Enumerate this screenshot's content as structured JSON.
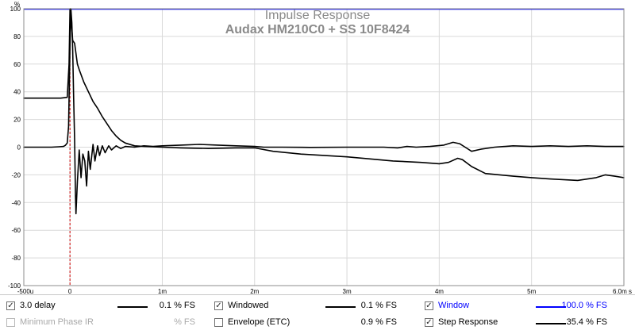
{
  "chart_data": {
    "type": "line",
    "title": "Impulse Response",
    "subtitle": "Audax HM210C0 + SS 10F8424",
    "y_unit": "%",
    "ylim": [
      -100,
      100
    ],
    "xlim": [
      -0.5,
      6.0
    ],
    "x_ticks": [
      {
        "v": -0.5,
        "label": "-500u"
      },
      {
        "v": 0,
        "label": "0"
      },
      {
        "v": 1,
        "label": "1m"
      },
      {
        "v": 2,
        "label": "2m"
      },
      {
        "v": 3,
        "label": "3m"
      },
      {
        "v": 4,
        "label": "4m"
      },
      {
        "v": 5,
        "label": "5m"
      },
      {
        "v": 6,
        "label": "6.0m s"
      }
    ],
    "y_ticks": [
      {
        "v": 100,
        "label": "100"
      },
      {
        "v": 80,
        "label": "80"
      },
      {
        "v": 60,
        "label": "60"
      },
      {
        "v": 40,
        "label": "40"
      },
      {
        "v": 20,
        "label": "20"
      },
      {
        "v": 0,
        "label": "0"
      },
      {
        "v": -20,
        "label": "-20"
      },
      {
        "v": -40,
        "label": "-40"
      },
      {
        "v": -60,
        "label": "-60"
      },
      {
        "v": -80,
        "label": "-80"
      },
      {
        "v": -100,
        "label": "-100"
      }
    ],
    "grid": true,
    "marker": {
      "x": 0,
      "color": "#d00000"
    },
    "window_level": 100,
    "series": [
      {
        "name": "3.0 delay",
        "color": "#000000",
        "points": [
          [
            -0.5,
            0
          ],
          [
            -0.4,
            0
          ],
          [
            -0.3,
            0
          ],
          [
            -0.2,
            0
          ],
          [
            -0.12,
            0.3
          ],
          [
            -0.07,
            0.5
          ],
          [
            -0.05,
            1.3
          ],
          [
            -0.03,
            3
          ],
          [
            -0.015,
            15
          ],
          [
            0,
            75
          ],
          [
            0.01,
            100
          ],
          [
            0.02,
            90
          ],
          [
            0.03,
            70
          ],
          [
            0.04,
            35
          ],
          [
            0.05,
            5
          ],
          [
            0.06,
            -35
          ],
          [
            0.065,
            -48
          ],
          [
            0.08,
            -25
          ],
          [
            0.1,
            -2
          ],
          [
            0.12,
            -22
          ],
          [
            0.14,
            -5
          ],
          [
            0.16,
            -10
          ],
          [
            0.18,
            -28
          ],
          [
            0.2,
            -3
          ],
          [
            0.22,
            -16
          ],
          [
            0.25,
            2
          ],
          [
            0.27,
            -10
          ],
          [
            0.3,
            1
          ],
          [
            0.32,
            -6
          ],
          [
            0.35,
            1
          ],
          [
            0.38,
            -4
          ],
          [
            0.42,
            1
          ],
          [
            0.45,
            -2
          ],
          [
            0.5,
            1
          ],
          [
            0.55,
            -1
          ],
          [
            0.6,
            0.5
          ],
          [
            0.7,
            0
          ],
          [
            0.8,
            1
          ],
          [
            0.9,
            0.5
          ],
          [
            1.0,
            1
          ],
          [
            1.2,
            1.5
          ],
          [
            1.4,
            2
          ],
          [
            1.6,
            1.5
          ],
          [
            1.8,
            1
          ],
          [
            2.0,
            0.5
          ],
          [
            2.1,
            0
          ],
          [
            2.3,
            0
          ],
          [
            2.6,
            -0.2
          ],
          [
            3.0,
            0
          ],
          [
            3.4,
            0
          ],
          [
            3.55,
            -0.5
          ],
          [
            3.65,
            0.5
          ],
          [
            3.75,
            0
          ],
          [
            3.9,
            0.5
          ],
          [
            4.05,
            1.5
          ],
          [
            4.15,
            3.5
          ],
          [
            4.22,
            2.5
          ],
          [
            4.28,
            0
          ],
          [
            4.35,
            -3
          ],
          [
            4.45,
            -1.5
          ],
          [
            4.6,
            0
          ],
          [
            4.8,
            1
          ],
          [
            5.0,
            0.5
          ],
          [
            5.2,
            1
          ],
          [
            5.4,
            0.5
          ],
          [
            5.6,
            1
          ],
          [
            5.8,
            0.5
          ],
          [
            6.0,
            0.5
          ]
        ]
      },
      {
        "name": "Step Response",
        "color": "#000000",
        "points": [
          [
            -0.5,
            35.4
          ],
          [
            -0.3,
            35.4
          ],
          [
            -0.1,
            35.4
          ],
          [
            -0.03,
            36
          ],
          [
            -0.01,
            60
          ],
          [
            0,
            100
          ],
          [
            0.005,
            100
          ],
          [
            0.02,
            85
          ],
          [
            0.03,
            77
          ],
          [
            0.05,
            75
          ],
          [
            0.08,
            60
          ],
          [
            0.1,
            56
          ],
          [
            0.15,
            47
          ],
          [
            0.2,
            40
          ],
          [
            0.25,
            33
          ],
          [
            0.3,
            28
          ],
          [
            0.35,
            22
          ],
          [
            0.4,
            17
          ],
          [
            0.45,
            12
          ],
          [
            0.5,
            8
          ],
          [
            0.55,
            5
          ],
          [
            0.6,
            3
          ],
          [
            0.7,
            1
          ],
          [
            0.8,
            0.5
          ],
          [
            1.0,
            0
          ],
          [
            1.2,
            -0.5
          ],
          [
            1.5,
            -1
          ],
          [
            1.8,
            -0.5
          ],
          [
            2.0,
            -0.5
          ],
          [
            2.2,
            -3
          ],
          [
            2.5,
            -5
          ],
          [
            3.0,
            -7
          ],
          [
            3.5,
            -10
          ],
          [
            3.8,
            -11
          ],
          [
            4.0,
            -12
          ],
          [
            4.1,
            -11
          ],
          [
            4.2,
            -8
          ],
          [
            4.25,
            -9
          ],
          [
            4.35,
            -14
          ],
          [
            4.5,
            -19
          ],
          [
            4.8,
            -21
          ],
          [
            5.0,
            -22
          ],
          [
            5.2,
            -23
          ],
          [
            5.5,
            -24
          ],
          [
            5.7,
            -22
          ],
          [
            5.8,
            -20
          ],
          [
            5.9,
            -21
          ],
          [
            6.0,
            -22
          ]
        ]
      }
    ]
  },
  "legend": [
    {
      "label": "3.0 delay",
      "checked": true,
      "enabled": true,
      "value": "0.1 % FS",
      "swatch": "#000000"
    },
    {
      "label": "Windowed",
      "checked": true,
      "enabled": true,
      "value": "0.1 % FS",
      "swatch": "#000000"
    },
    {
      "label": "Window",
      "checked": true,
      "enabled": true,
      "value": "100.0 % FS",
      "swatch": "#0000ff",
      "text_color": "#0000ff"
    },
    {
      "label": "Minimum Phase IR",
      "checked": false,
      "enabled": false,
      "value": "% FS",
      "swatch": ""
    },
    {
      "label": "Envelope (ETC)",
      "checked": false,
      "enabled": true,
      "value": "0.9 % FS",
      "swatch": ""
    },
    {
      "label": "Step Response",
      "checked": true,
      "enabled": true,
      "value": "35.4 % FS",
      "swatch": "#000000"
    }
  ]
}
